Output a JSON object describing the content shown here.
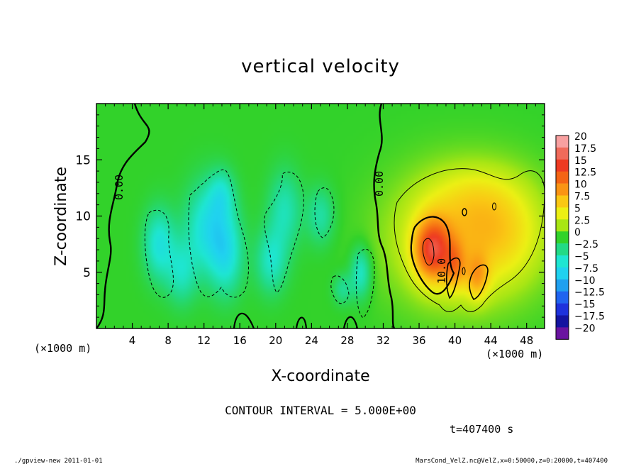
{
  "chart_data": {
    "type": "heatmap",
    "title": "vertical velocity",
    "xlabel": "X-coordinate",
    "ylabel": "Z-coordinate",
    "x_unit_label": "(×1000 m)",
    "y_unit_label": "(×1000 m)",
    "xlim": [
      0,
      50
    ],
    "ylim": [
      0,
      20
    ],
    "x_ticks": [
      4,
      8,
      12,
      16,
      20,
      24,
      28,
      32,
      36,
      40,
      44,
      48
    ],
    "y_ticks": [
      5,
      10,
      15
    ],
    "colorbar": {
      "labels": [
        "20",
        "17.5",
        "15",
        "12.5",
        "10",
        "7.5",
        "5",
        "2.5",
        "0",
        "−2.5",
        "−5",
        "−7.5",
        "−10",
        "−12.5",
        "−15",
        "−17.5",
        "−20"
      ],
      "colors": [
        "#f8a0a0",
        "#f06a5a",
        "#ee3a22",
        "#f46414",
        "#fa9414",
        "#fac814",
        "#ecf014",
        "#a8e614",
        "#32d22a",
        "#22da86",
        "#1ee6d2",
        "#20d2f0",
        "#20a0f0",
        "#2064f0",
        "#1e32dc",
        "#1414a0",
        "#6a14a0"
      ]
    },
    "contour_labels": [
      "0.00",
      "0.00",
      "10.0"
    ],
    "contour_interval_text": "CONTOUR INTERVAL = 5.000E+00",
    "time_text": "t=407400 s",
    "bottom_left_text": "./gpview-new  2011-01-01",
    "bottom_right_text": "MarsCond_VelZ.nc@VelZ,x=0:50000,z=0:20000,t=407400",
    "blobs": [
      {
        "x": 7,
        "z": 7.5,
        "sx": 1.2,
        "sz": 2.2,
        "w": -5.5
      },
      {
        "x": 9.5,
        "z": 5,
        "sx": 1.2,
        "sz": 2.0,
        "w": -4
      },
      {
        "x": 12.5,
        "z": 9,
        "sx": 1.8,
        "sz": 2.8,
        "w": -6
      },
      {
        "x": 14.5,
        "z": 6.5,
        "sx": 1.3,
        "sz": 2.5,
        "w": -5
      },
      {
        "x": 14,
        "z": 12,
        "sx": 1.0,
        "sz": 1.5,
        "w": -3.5
      },
      {
        "x": 19.5,
        "z": 6,
        "sx": 1.2,
        "sz": 2.0,
        "w": -4.5
      },
      {
        "x": 21,
        "z": 10.5,
        "sx": 1.3,
        "sz": 2.5,
        "w": -4
      },
      {
        "x": 25,
        "z": 10,
        "sx": 1.1,
        "sz": 1.8,
        "w": -3.5
      },
      {
        "x": 29.5,
        "z": 5,
        "sx": 0.8,
        "sz": 1.6,
        "w": -5
      },
      {
        "x": 27.5,
        "z": 3.5,
        "sx": 0.8,
        "sz": 1.0,
        "w": -3
      },
      {
        "x": 41,
        "z": 8,
        "sx": 5.5,
        "sz": 4.0,
        "w": 7
      },
      {
        "x": 37.5,
        "z": 7,
        "sx": 1.4,
        "sz": 1.9,
        "w": 11
      },
      {
        "x": 40,
        "z": 5.5,
        "sx": 0.8,
        "sz": 1.4,
        "w": 5
      },
      {
        "x": 42.5,
        "z": 4.5,
        "sx": 0.9,
        "sz": 1.4,
        "w": 5
      },
      {
        "x": 46,
        "z": 9,
        "sx": 3.0,
        "sz": 3.0,
        "w": 2.5
      },
      {
        "x": 42,
        "z": 12,
        "sx": 3.5,
        "sz": 2.0,
        "w": 2.0
      }
    ]
  }
}
